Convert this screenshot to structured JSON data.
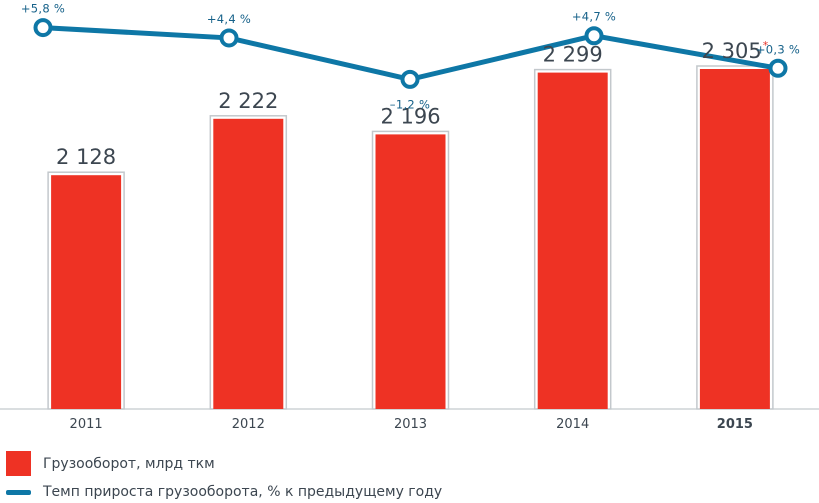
{
  "chart_data": {
    "type": "bar",
    "categories": [
      "2011",
      "2012",
      "2013",
      "2014",
      "2015"
    ],
    "highlight_category": "2015",
    "series": [
      {
        "name": "Грузооборот, млрд ткм",
        "type": "bar",
        "color": "#ee3224",
        "values": [
          2128,
          2222,
          2196,
          2299,
          2305
        ],
        "labels": [
          "2 128",
          "2 222",
          "2 196",
          "2 299",
          "2 305"
        ],
        "footnote_marks": [
          "",
          "",
          "",
          "",
          "*"
        ]
      },
      {
        "name": "Темп прироста грузооборота, % к предыдущему году",
        "type": "line",
        "color": "#0e77a6",
        "values": [
          5.8,
          4.4,
          -1.2,
          4.7,
          0.3
        ],
        "labels": [
          "+5,8 %",
          "+4,4 %",
          "–1,2 %",
          "+4,7 %",
          "+0,3 %"
        ]
      }
    ],
    "footnote_color": "#e5352a",
    "label_color": "#17628a",
    "grid": false,
    "legend_position": "bottom-left"
  }
}
